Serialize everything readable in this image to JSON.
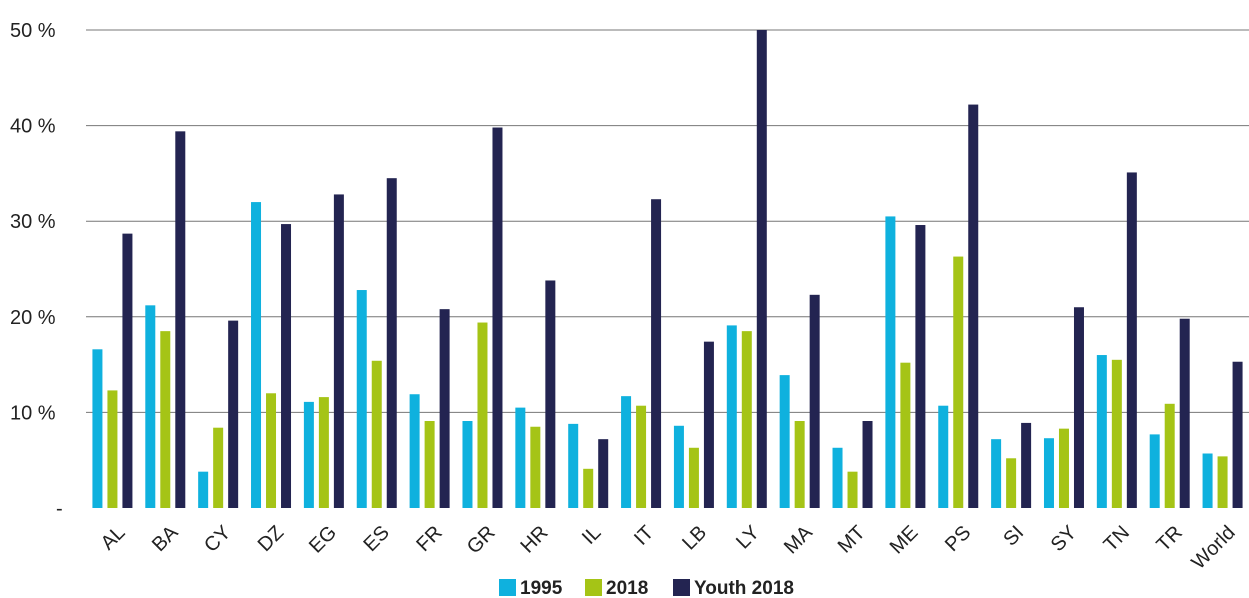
{
  "chart_data": {
    "type": "bar",
    "title": "",
    "xlabel": "",
    "ylabel": "",
    "ylim": [
      0,
      50
    ],
    "grid": true,
    "legend": "bottom",
    "y_ticks": [
      {
        "value": 0,
        "label": "-"
      },
      {
        "value": 10,
        "label": "10 %"
      },
      {
        "value": 20,
        "label": "20 %"
      },
      {
        "value": 30,
        "label": "30 %"
      },
      {
        "value": 40,
        "label": "40 %"
      },
      {
        "value": 50,
        "label": "50 %"
      }
    ],
    "categories": [
      "AL",
      "BA",
      "CY",
      "DZ",
      "EG",
      "ES",
      "FR",
      "GR",
      "HR",
      "IL",
      "IT",
      "LB",
      "LY",
      "MA",
      "MT",
      "ME",
      "PS",
      "SI",
      "SY",
      "TN",
      "TR",
      "World"
    ],
    "series": [
      {
        "name": "1995",
        "color": "#0fb1de",
        "values": [
          16.6,
          21.2,
          3.8,
          32.0,
          11.1,
          22.8,
          11.9,
          9.1,
          10.5,
          8.8,
          11.7,
          8.6,
          19.1,
          13.9,
          6.3,
          30.5,
          10.7,
          7.2,
          7.3,
          16.0,
          7.7,
          5.7
        ]
      },
      {
        "name": "2018",
        "color": "#a5c416",
        "values": [
          12.3,
          18.5,
          8.4,
          12.0,
          11.6,
          15.4,
          9.1,
          19.4,
          8.5,
          4.1,
          10.7,
          6.3,
          18.5,
          9.1,
          3.8,
          15.2,
          26.3,
          5.2,
          8.3,
          15.5,
          10.9,
          5.4
        ]
      },
      {
        "name": "Youth 2018",
        "color": "#232451",
        "values": [
          28.7,
          39.4,
          19.6,
          29.7,
          32.8,
          34.5,
          20.8,
          39.8,
          23.8,
          7.2,
          32.3,
          17.4,
          50.0,
          22.3,
          9.1,
          29.6,
          42.2,
          8.9,
          21.0,
          35.1,
          19.8,
          15.3
        ]
      }
    ]
  }
}
